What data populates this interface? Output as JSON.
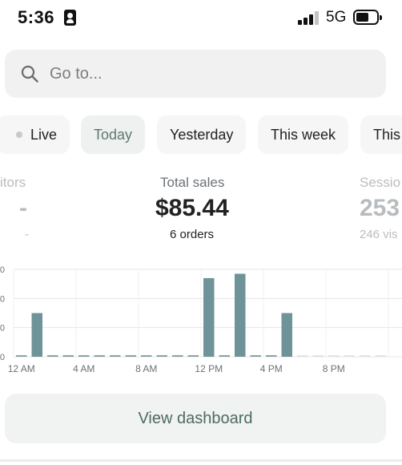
{
  "status_bar": {
    "time": "5:36",
    "network": "5G",
    "icons": [
      "contact-card-icon",
      "signal-icon",
      "battery-icon"
    ]
  },
  "search": {
    "placeholder": "Go to...",
    "icon": "search-icon"
  },
  "tabs": [
    {
      "label": "Live",
      "active": false
    },
    {
      "label": "Today",
      "active": true
    },
    {
      "label": "Yesterday",
      "active": false
    },
    {
      "label": "This week",
      "active": false
    },
    {
      "label": "This",
      "active": false
    }
  ],
  "metrics": [
    {
      "label": "itors",
      "value": "-",
      "sub": "-"
    },
    {
      "label": "Total sales",
      "value": "$85.44",
      "sub": "6 orders"
    },
    {
      "label": "Sessio",
      "value": "253",
      "sub": "246 vis"
    }
  ],
  "chart_data": {
    "type": "bar",
    "y_tick_labels": [
      "0",
      "0",
      "0",
      "0"
    ],
    "x_tick_labels": [
      "12 AM",
      "4 AM",
      "8 AM",
      "12 PM",
      "4 PM",
      "8 PM"
    ],
    "categories": [
      "0",
      "1",
      "2",
      "3",
      "4",
      "5",
      "6",
      "7",
      "8",
      "9",
      "10",
      "11",
      "12",
      "13",
      "14",
      "15",
      "16",
      "17",
      "18",
      "19",
      "20",
      "21",
      "22",
      "23"
    ],
    "values": [
      0,
      15,
      0,
      0,
      0,
      0,
      0,
      0,
      0,
      0,
      0,
      0,
      27,
      0,
      28.5,
      0,
      0,
      15,
      0,
      0,
      0,
      0,
      0,
      0
    ],
    "ylim": [
      0,
      30
    ],
    "current_hour_index": 17,
    "grid": true,
    "colors": {
      "bar": "#6e9399",
      "baseline": "#8aa3a6",
      "future_baseline": "#e3e3e3",
      "grid": "#e4e4e4"
    }
  },
  "dashboard_button": {
    "label": "View dashboard"
  },
  "colors": {
    "accent": "#5d7a6c",
    "bar": "#6e9399"
  }
}
